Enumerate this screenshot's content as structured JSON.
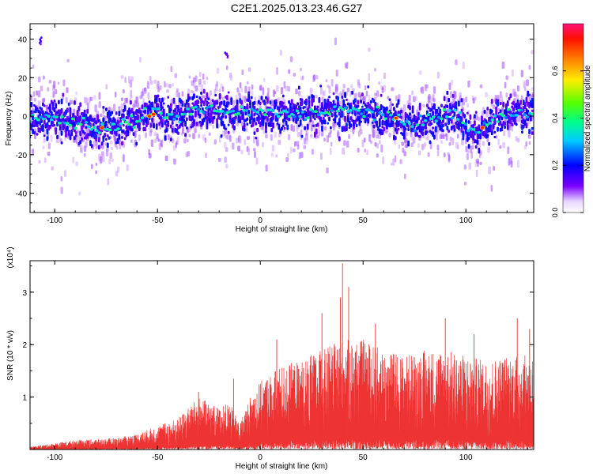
{
  "figure": {
    "title": "C2E1.2025.013.23.46.G27"
  },
  "chart_data": [
    {
      "type": "heatmap",
      "xlabel": "Height of straight line (km)",
      "ylabel": "Frequency (Hz)",
      "xlim": [
        -112,
        133
      ],
      "ylim": [
        -50,
        48
      ],
      "x_ticks": [
        -100,
        -50,
        0,
        50,
        100
      ],
      "y_ticks": [
        -40,
        -20,
        0,
        20,
        40
      ],
      "colorbar": {
        "label": "Normalized spectral amplitude",
        "range": [
          0,
          0.8
        ],
        "ticks": [
          "0.0",
          "0.2",
          "0.4",
          "0.6"
        ],
        "tick_values": [
          0.0,
          0.2,
          0.4,
          0.6
        ]
      },
      "ridge_frequency": [
        {
          "x": -112,
          "y": -2
        },
        {
          "x": -100,
          "y": -1
        },
        {
          "x": -90,
          "y": -3
        },
        {
          "x": -80,
          "y": -6
        },
        {
          "x": -70,
          "y": -5
        },
        {
          "x": -60,
          "y": -2
        },
        {
          "x": -55,
          "y": 1
        },
        {
          "x": -50,
          "y": 3
        },
        {
          "x": -45,
          "y": -2
        },
        {
          "x": -40,
          "y": 0
        },
        {
          "x": -30,
          "y": 4
        },
        {
          "x": -20,
          "y": 2
        },
        {
          "x": 0,
          "y": 2
        },
        {
          "x": 20,
          "y": 1
        },
        {
          "x": 40,
          "y": 3
        },
        {
          "x": 55,
          "y": 2
        },
        {
          "x": 60,
          "y": 0
        },
        {
          "x": 65,
          "y": -2
        },
        {
          "x": 75,
          "y": -4
        },
        {
          "x": 85,
          "y": -1
        },
        {
          "x": 95,
          "y": 2
        },
        {
          "x": 100,
          "y": -6
        },
        {
          "x": 105,
          "y": -8
        },
        {
          "x": 115,
          "y": -1
        },
        {
          "x": 125,
          "y": 2
        },
        {
          "x": 133,
          "y": 3
        }
      ],
      "peak_markers": [
        {
          "x": -77,
          "y": -6
        },
        {
          "x": -54,
          "y": 0
        },
        {
          "x": -52,
          "y": 1
        },
        {
          "x": 66,
          "y": -1
        },
        {
          "x": 108,
          "y": -6
        }
      ],
      "outliers": [
        {
          "x": -17,
          "y": 33
        },
        {
          "x": -107,
          "y": 40
        }
      ]
    },
    {
      "type": "line",
      "xlabel": "Height of straight line (km)",
      "ylabel": "SNR (10 * v/v)",
      "scale_note": "(x10⁴)",
      "xlim": [
        -112,
        133
      ],
      "ylim": [
        0,
        3.6
      ],
      "x_ticks": [
        -100,
        -50,
        0,
        50,
        100
      ],
      "y_ticks": [
        1,
        2,
        3
      ],
      "series": [
        {
          "color": "#ee3333",
          "envelope": [
            {
              "x": -112,
              "y": 0.05
            },
            {
              "x": -100,
              "y": 0.12
            },
            {
              "x": -90,
              "y": 0.18
            },
            {
              "x": -80,
              "y": 0.2
            },
            {
              "x": -70,
              "y": 0.22
            },
            {
              "x": -60,
              "y": 0.3
            },
            {
              "x": -50,
              "y": 0.45
            },
            {
              "x": -40,
              "y": 0.6
            },
            {
              "x": -35,
              "y": 0.8
            },
            {
              "x": -30,
              "y": 1.0
            },
            {
              "x": -25,
              "y": 0.9
            },
            {
              "x": -20,
              "y": 0.8
            },
            {
              "x": -15,
              "y": 0.9
            },
            {
              "x": -10,
              "y": 0.5
            },
            {
              "x": -5,
              "y": 1.0
            },
            {
              "x": 0,
              "y": 1.3
            },
            {
              "x": 10,
              "y": 1.6
            },
            {
              "x": 20,
              "y": 1.7
            },
            {
              "x": 30,
              "y": 1.9
            },
            {
              "x": 40,
              "y": 2.1
            },
            {
              "x": 50,
              "y": 2.1
            },
            {
              "x": 60,
              "y": 1.9
            },
            {
              "x": 70,
              "y": 1.8
            },
            {
              "x": 80,
              "y": 1.9
            },
            {
              "x": 90,
              "y": 1.9
            },
            {
              "x": 100,
              "y": 1.8
            },
            {
              "x": 110,
              "y": 1.7
            },
            {
              "x": 120,
              "y": 1.8
            },
            {
              "x": 133,
              "y": 1.8
            }
          ],
          "spikes": [
            {
              "x": 40,
              "y": 3.55
            },
            {
              "x": 43,
              "y": 3.1
            },
            {
              "x": 30,
              "y": 2.6
            },
            {
              "x": 39,
              "y": 2.9
            },
            {
              "x": 56,
              "y": 2.4
            },
            {
              "x": 90,
              "y": 2.5
            },
            {
              "x": 125,
              "y": 2.5
            },
            {
              "x": 131,
              "y": 2.3
            },
            {
              "x": 104,
              "y": 2.2
            },
            {
              "x": 8,
              "y": 2.1
            },
            {
              "x": -30,
              "y": 1.1
            },
            {
              "x": -13,
              "y": 1.35
            }
          ]
        }
      ]
    }
  ]
}
